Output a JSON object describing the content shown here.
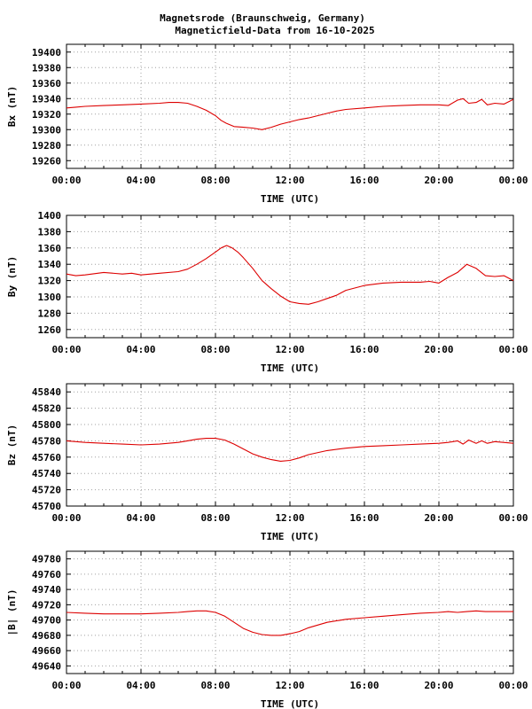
{
  "header": {
    "line1": "Magnetsrode (Braunschweig, Germany)",
    "line2": "Magneticfield-Data from 16-10-2025"
  },
  "colors": {
    "series": "#dd0000",
    "grid": "#a0a0a0",
    "frame": "#000000"
  },
  "chart_data": [
    {
      "type": "line",
      "ylabel": "Bx (nT)",
      "xlabel": "TIME (UTC)",
      "xlim": [
        0,
        24
      ],
      "ylim": [
        19250,
        19410
      ],
      "grid": true,
      "x_ticks": [
        "00:00",
        "04:00",
        "08:00",
        "12:00",
        "16:00",
        "20:00",
        "00:00"
      ],
      "y_ticks": [
        19260,
        19280,
        19300,
        19320,
        19340,
        19360,
        19380,
        19400
      ],
      "series": [
        {
          "x": [
            0,
            0.5,
            1,
            2,
            3,
            4,
            5,
            5.5,
            6,
            6.5,
            7,
            7.5,
            8,
            8.3,
            8.6,
            9,
            9.5,
            10,
            10.5,
            11,
            11.5,
            12,
            12.5,
            13,
            13.5,
            14,
            14.5,
            15,
            16,
            17,
            18,
            19,
            20,
            20.5,
            21,
            21.3,
            21.6,
            22,
            22.3,
            22.6,
            23,
            23.5,
            24
          ],
          "y": [
            19328,
            19329,
            19330,
            19331,
            19332,
            19333,
            19334,
            19335,
            19335,
            19334,
            19330,
            19325,
            19318,
            19312,
            19308,
            19304,
            19303,
            19302,
            19300,
            19303,
            19307,
            19310,
            19313,
            19315,
            19318,
            19321,
            19324,
            19326,
            19328,
            19330,
            19331,
            19332,
            19332,
            19331,
            19338,
            19340,
            19334,
            19335,
            19339,
            19332,
            19334,
            19333,
            19339
          ]
        }
      ]
    },
    {
      "type": "line",
      "ylabel": "By (nT)",
      "xlabel": "TIME (UTC)",
      "xlim": [
        0,
        24
      ],
      "ylim": [
        1250,
        1400
      ],
      "grid": true,
      "x_ticks": [
        "00:00",
        "04:00",
        "08:00",
        "12:00",
        "16:00",
        "20:00",
        "00:00"
      ],
      "y_ticks": [
        1260,
        1280,
        1300,
        1320,
        1340,
        1360,
        1380,
        1400
      ],
      "series": [
        {
          "x": [
            0,
            0.5,
            1,
            2,
            3,
            3.5,
            4,
            5,
            6,
            6.5,
            7,
            7.5,
            8,
            8.3,
            8.6,
            8.9,
            9.2,
            9.5,
            10,
            10.5,
            11,
            11.5,
            12,
            12.5,
            13,
            13.5,
            14,
            14.5,
            15,
            16,
            17,
            18,
            19,
            19.5,
            20,
            20.5,
            21,
            21.5,
            22,
            22.5,
            23,
            23.5,
            24
          ],
          "y": [
            1328,
            1326,
            1327,
            1330,
            1328,
            1329,
            1327,
            1329,
            1331,
            1334,
            1340,
            1347,
            1355,
            1360,
            1363,
            1360,
            1355,
            1348,
            1335,
            1320,
            1310,
            1301,
            1294,
            1292,
            1291,
            1294,
            1298,
            1302,
            1308,
            1314,
            1317,
            1318,
            1318,
            1319,
            1317,
            1324,
            1330,
            1340,
            1335,
            1326,
            1325,
            1326,
            1320
          ]
        }
      ]
    },
    {
      "type": "line",
      "ylabel": "Bz (nT)",
      "xlabel": "TIME (UTC)",
      "xlim": [
        0,
        24
      ],
      "ylim": [
        45700,
        45850
      ],
      "grid": true,
      "x_ticks": [
        "00:00",
        "04:00",
        "08:00",
        "12:00",
        "16:00",
        "20:00",
        "00:00"
      ],
      "y_ticks": [
        45700,
        45720,
        45740,
        45760,
        45780,
        45800,
        45820,
        45840
      ],
      "series": [
        {
          "x": [
            0,
            1,
            2,
            3,
            4,
            5,
            6,
            6.5,
            7,
            7.5,
            8,
            8.5,
            9,
            9.5,
            10,
            10.5,
            11,
            11.5,
            12,
            12.5,
            13,
            14,
            15,
            16,
            17,
            18,
            19,
            20,
            20.5,
            21,
            21.3,
            21.6,
            22,
            22.3,
            22.6,
            23,
            24
          ],
          "y": [
            45780,
            45778,
            45777,
            45776,
            45775,
            45776,
            45778,
            45780,
            45782,
            45783,
            45783,
            45781,
            45776,
            45770,
            45764,
            45760,
            45757,
            45755,
            45756,
            45759,
            45763,
            45768,
            45771,
            45773,
            45774,
            45775,
            45776,
            45777,
            45778,
            45780,
            45776,
            45781,
            45777,
            45780,
            45777,
            45779,
            45777
          ]
        }
      ]
    },
    {
      "type": "line",
      "ylabel": "|B| (nT)",
      "xlabel": "TIME (UTC)",
      "xlim": [
        0,
        24
      ],
      "ylim": [
        49630,
        49790
      ],
      "grid": true,
      "x_ticks": [
        "00:00",
        "04:00",
        "08:00",
        "12:00",
        "16:00",
        "20:00",
        "00:00"
      ],
      "y_ticks": [
        49640,
        49660,
        49680,
        49700,
        49720,
        49740,
        49760,
        49780
      ],
      "series": [
        {
          "x": [
            0,
            1,
            2,
            3,
            4,
            5,
            6,
            6.5,
            7,
            7.5,
            8,
            8.5,
            9,
            9.5,
            10,
            10.5,
            11,
            11.5,
            12,
            12.5,
            13,
            14,
            15,
            16,
            17,
            18,
            19,
            20,
            20.5,
            21,
            21.5,
            22,
            22.5,
            23,
            24
          ],
          "y": [
            49710,
            49709,
            49708,
            49708,
            49708,
            49709,
            49710,
            49711,
            49712,
            49712,
            49710,
            49705,
            49697,
            49689,
            49684,
            49681,
            49680,
            49680,
            49682,
            49685,
            49690,
            49697,
            49701,
            49703,
            49705,
            49707,
            49709,
            49710,
            49711,
            49710,
            49711,
            49712,
            49711,
            49711,
            49711
          ]
        }
      ]
    }
  ]
}
